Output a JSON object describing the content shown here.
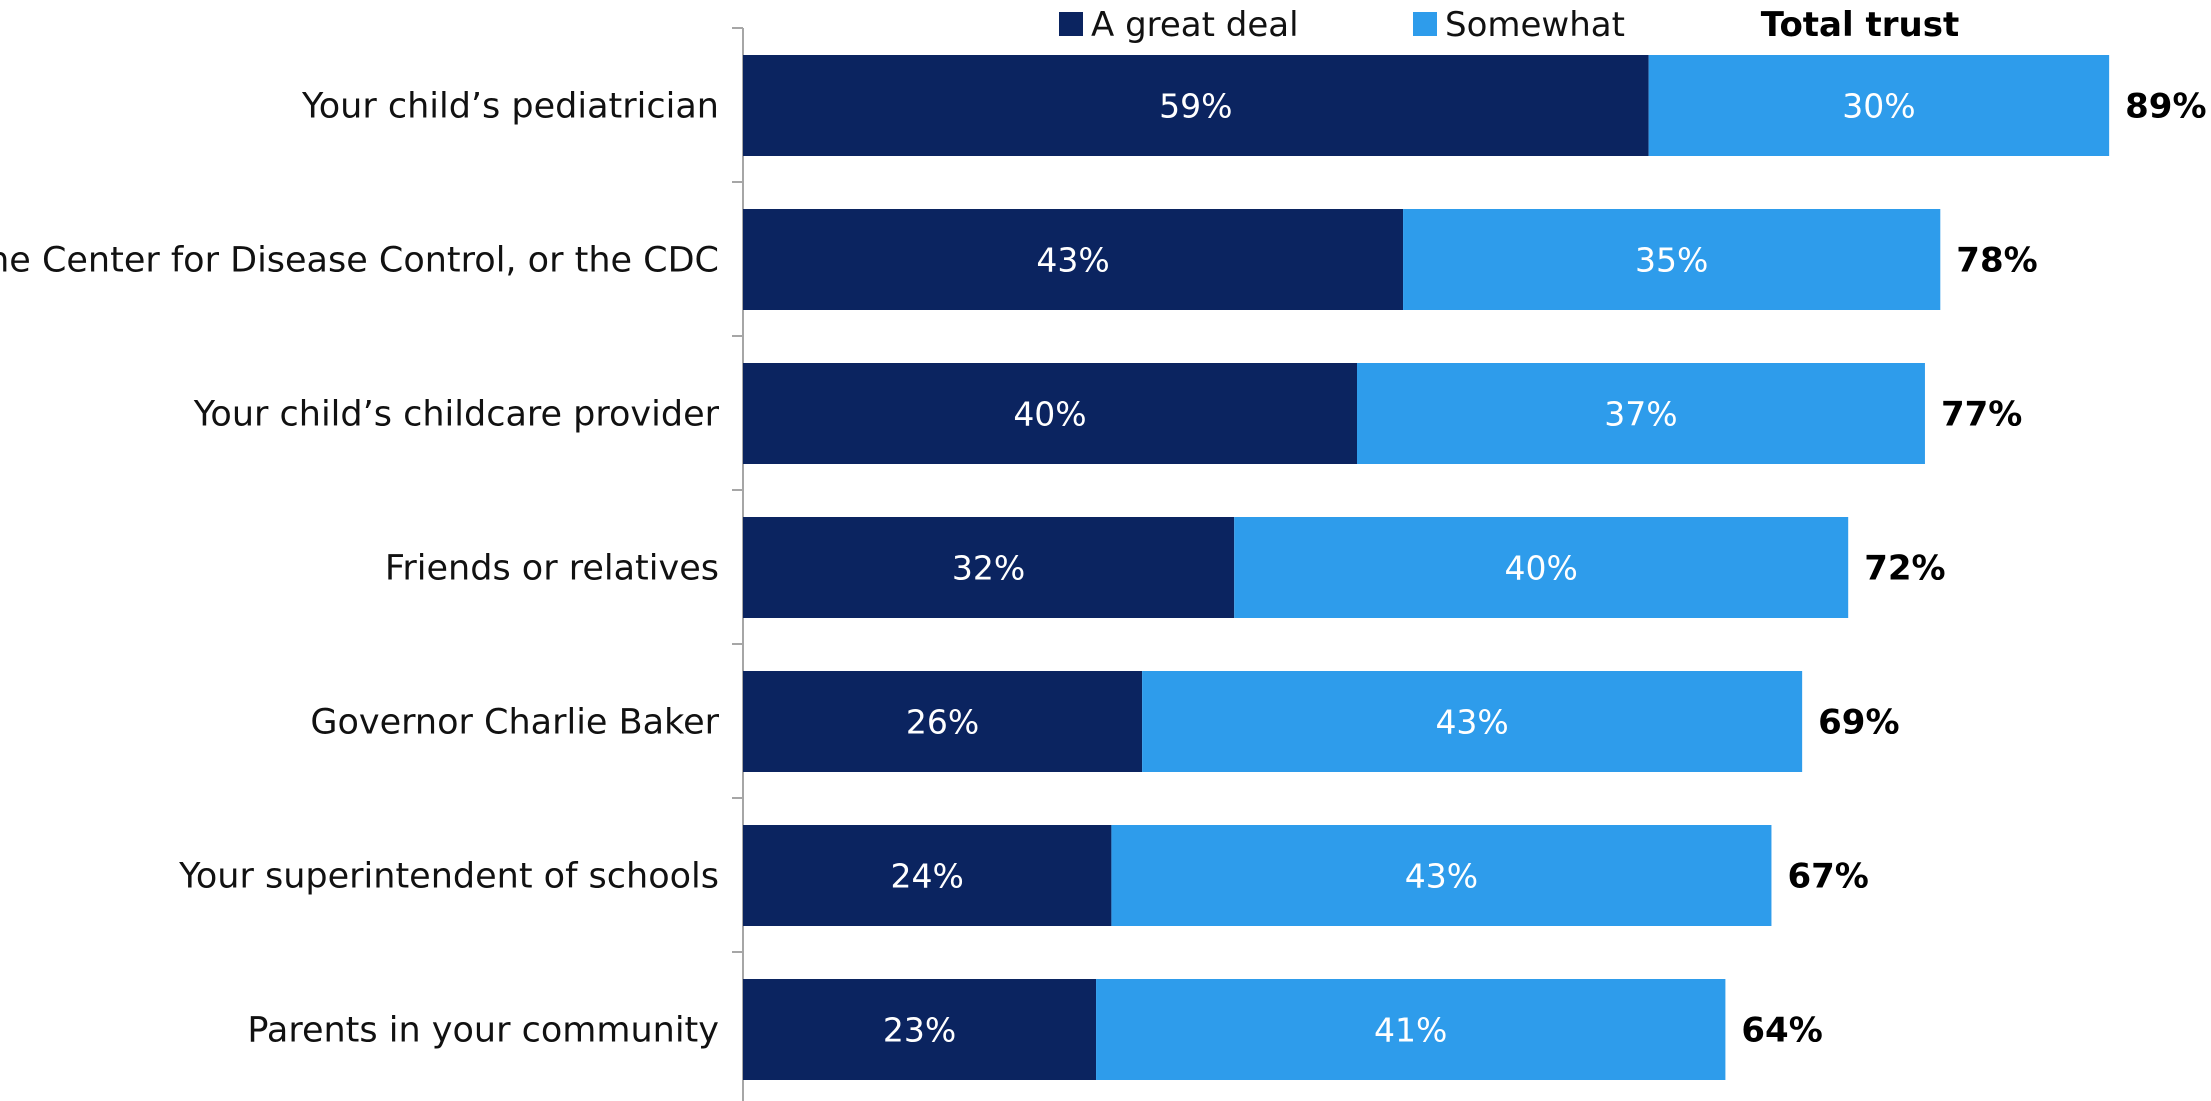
{
  "chart_data": {
    "type": "bar",
    "orientation": "horizontal",
    "stacked": true,
    "categories": [
      "Your child’s pediatrician",
      "The Center for Disease Control, or the CDC",
      "Your child’s childcare provider",
      "Friends or relatives",
      "Governor Charlie Baker",
      "Your superintendent of schools",
      "Parents in your community"
    ],
    "series": [
      {
        "name": "A great deal",
        "color": "#0b2460",
        "values": [
          59,
          43,
          40,
          32,
          26,
          24,
          23
        ]
      },
      {
        "name": "Somewhat",
        "color": "#2e9ceb",
        "values": [
          30,
          35,
          37,
          40,
          43,
          43,
          41
        ]
      }
    ],
    "totals": [
      89,
      78,
      77,
      72,
      69,
      67,
      64
    ],
    "value_suffix": "%",
    "totals_header": "Total trust",
    "xlim": [
      0,
      100
    ],
    "grid": false,
    "legend_position": "top"
  }
}
